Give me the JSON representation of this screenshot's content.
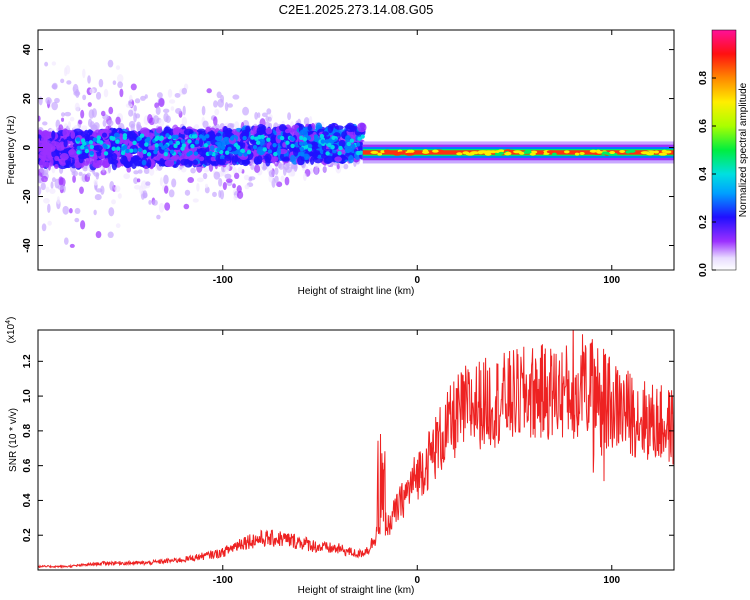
{
  "title": "C2E1.2025.273.14.08.G05",
  "chart_data": [
    {
      "type": "heatmap",
      "title": "C2E1.2025.273.14.08.G05",
      "xlabel": "Height of straight line (km)",
      "ylabel": "Frequency (Hz)",
      "xlim": [
        -195,
        132
      ],
      "ylim": [
        -50,
        48
      ],
      "xticks": [
        -100,
        0,
        100
      ],
      "yticks": [
        -40,
        -20,
        0,
        20,
        40
      ],
      "colorbar": {
        "label": "Normalized spectral amplitude",
        "range": [
          0,
          1
        ],
        "ticks": [
          0.0,
          0.2,
          0.4,
          0.6,
          0.8
        ]
      },
      "features": [
        {
          "x_range": [
            -195,
            -28
          ],
          "freq_center": 0,
          "freq_spread": 6,
          "amplitude": "low-medium"
        },
        {
          "x_range": [
            -28,
            132
          ],
          "freq_center": -2,
          "freq_spread": 1,
          "amplitude": "high"
        }
      ]
    },
    {
      "type": "line",
      "xlabel": "Height of straight line (km)",
      "ylabel": "SNR (10 * v/v)",
      "y_multiplier": "(x10",
      "y_multiplier_exp": "4",
      "y_multiplier_close": ")",
      "xlim": [
        -195,
        132
      ],
      "ylim": [
        0,
        1.38
      ],
      "xticks": [
        -100,
        0,
        100
      ],
      "yticks": [
        0.2,
        0.4,
        0.6,
        0.8,
        1.0,
        1.2
      ],
      "color": "#ee2222",
      "series": [
        {
          "name": "SNR",
          "x": [
            -195,
            -180,
            -160,
            -140,
            -120,
            -100,
            -90,
            -80,
            -70,
            -60,
            -50,
            -40,
            -30,
            -25,
            -21,
            -18,
            -15,
            -12,
            -10,
            -5,
            0,
            5,
            10,
            15,
            20,
            25,
            30,
            40,
            50,
            60,
            70,
            80,
            85,
            90,
            95,
            100,
            110,
            120,
            132
          ],
          "y": [
            0.02,
            0.02,
            0.04,
            0.04,
            0.06,
            0.1,
            0.16,
            0.18,
            0.18,
            0.16,
            0.13,
            0.12,
            0.09,
            0.12,
            0.2,
            0.25,
            0.25,
            0.32,
            0.36,
            0.45,
            0.55,
            0.62,
            0.72,
            0.8,
            0.88,
            0.93,
            0.95,
            0.97,
            1.0,
            1.02,
            1.02,
            1.03,
            1.05,
            1.07,
            1.0,
            0.95,
            0.9,
            0.85,
            0.82
          ]
        }
      ]
    }
  ]
}
